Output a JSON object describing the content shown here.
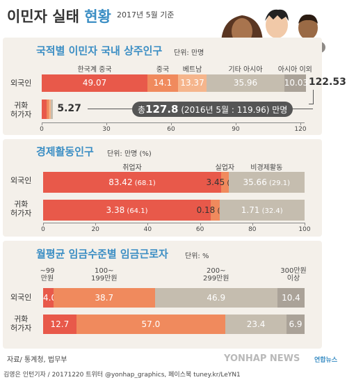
{
  "header": {
    "title_main": "이민자 실태",
    "title_accent": "현황",
    "date_note": "2017년 5월 기준"
  },
  "colors": {
    "red": "#e8594a",
    "orange": "#f08a5d",
    "peach": "#f5b58c",
    "gray": "#c5bdaf",
    "graydark": "#aaa298",
    "track": "#e5ded3",
    "blue": "#3b8ec4",
    "panel": "#f4f0ea",
    "text": "#333333"
  },
  "chart_data": [
    {
      "type": "bar",
      "title": "국적별 이민자 국내 상주인구",
      "unit": "단위: 만명",
      "categories": [
        "외국인",
        "귀화 허가자"
      ],
      "segment_labels": [
        "한국계 중국",
        "중국",
        "베트남",
        "기타 아시아",
        "아시아 이외"
      ],
      "series": [
        {
          "name": "한국계 중국",
          "values": [
            49.07,
            null
          ]
        },
        {
          "name": "중국",
          "values": [
            14.1,
            null
          ]
        },
        {
          "name": "베트남",
          "values": [
            13.37,
            null
          ]
        },
        {
          "name": "기타 아시아",
          "values": [
            35.96,
            null
          ]
        },
        {
          "name": "아시아 이외",
          "values": [
            10.03,
            null
          ]
        }
      ],
      "totals": [
        122.53,
        5.27
      ],
      "total_labels": [
        "122.53",
        "5.27"
      ],
      "total_note_prefix": "총",
      "total_note_value": "127.8",
      "total_note_detail": "(2016년 5월 : 119.96)",
      "total_note_suffix": "만명",
      "xlim": [
        0,
        127
      ],
      "xticks": [
        "0",
        "30",
        "60",
        "90",
        "120"
      ],
      "xtick_values": [
        0,
        30,
        60,
        90,
        120
      ]
    },
    {
      "type": "bar",
      "title": "경제활동인구",
      "unit": "단위: 만명 (%)",
      "categories": [
        "외국인",
        "귀화 허가자"
      ],
      "segment_labels": [
        "취업자",
        "실업자",
        "비경제활동"
      ],
      "series": [
        {
          "name": "취업자",
          "values": [
            83.42,
            3.38
          ],
          "percent": [
            68.1,
            64.1
          ],
          "labels": [
            "83.42",
            "3.38"
          ],
          "pct_labels": [
            "(68.1)",
            "(64.1)"
          ]
        },
        {
          "name": "실업자",
          "values": [
            3.45,
            0.18
          ],
          "percent": [
            2.8,
            3.4
          ],
          "labels": [
            "3.45",
            "0.18"
          ],
          "pct_labels": [
            "(2.8)",
            "(3.4)"
          ]
        },
        {
          "name": "비경제활동",
          "values": [
            35.66,
            1.71
          ],
          "percent": [
            29.1,
            32.4
          ],
          "labels": [
            "35.66",
            "1.71"
          ],
          "pct_labels": [
            "(29.1)",
            "(32.4)"
          ]
        }
      ],
      "xlim": [
        0,
        100
      ],
      "xticks": [
        "0",
        "20",
        "40",
        "60",
        "80",
        "100"
      ],
      "xtick_values": [
        0,
        20,
        40,
        60,
        80,
        100
      ]
    },
    {
      "type": "bar",
      "title": "월평균 임금수준별 임금근로자",
      "unit": "단위: %",
      "categories": [
        "외국인",
        "귀화 허가자"
      ],
      "segment_labels": [
        [
          "~99",
          "만원"
        ],
        [
          "100~",
          "199만원"
        ],
        [
          "200~",
          "299만원"
        ],
        [
          "300만원",
          "이상"
        ]
      ],
      "series": [
        {
          "name": "~99만원",
          "values": [
            4.0,
            12.7
          ],
          "labels": [
            "4.0",
            "12.7"
          ]
        },
        {
          "name": "100~199만원",
          "values": [
            38.7,
            57.0
          ],
          "labels": [
            "38.7",
            "57.0"
          ]
        },
        {
          "name": "200~299만원",
          "values": [
            46.9,
            23.4
          ],
          "labels": [
            "46.9",
            "23.4"
          ]
        },
        {
          "name": "300만원 이상",
          "values": [
            10.4,
            6.9
          ],
          "labels": [
            "10.4",
            "6.9"
          ]
        }
      ],
      "xlim": [
        0,
        100
      ]
    }
  ],
  "footer": {
    "source": "자료/ 통계청, 법무부",
    "credit": "김영은 인턴기자 / 20171220  트위터 @yonhap_graphics, 페이스북 tuney.kr/LeYN1",
    "watermark": "YONHAP NEWS",
    "logo_text": "연합뉴스"
  }
}
